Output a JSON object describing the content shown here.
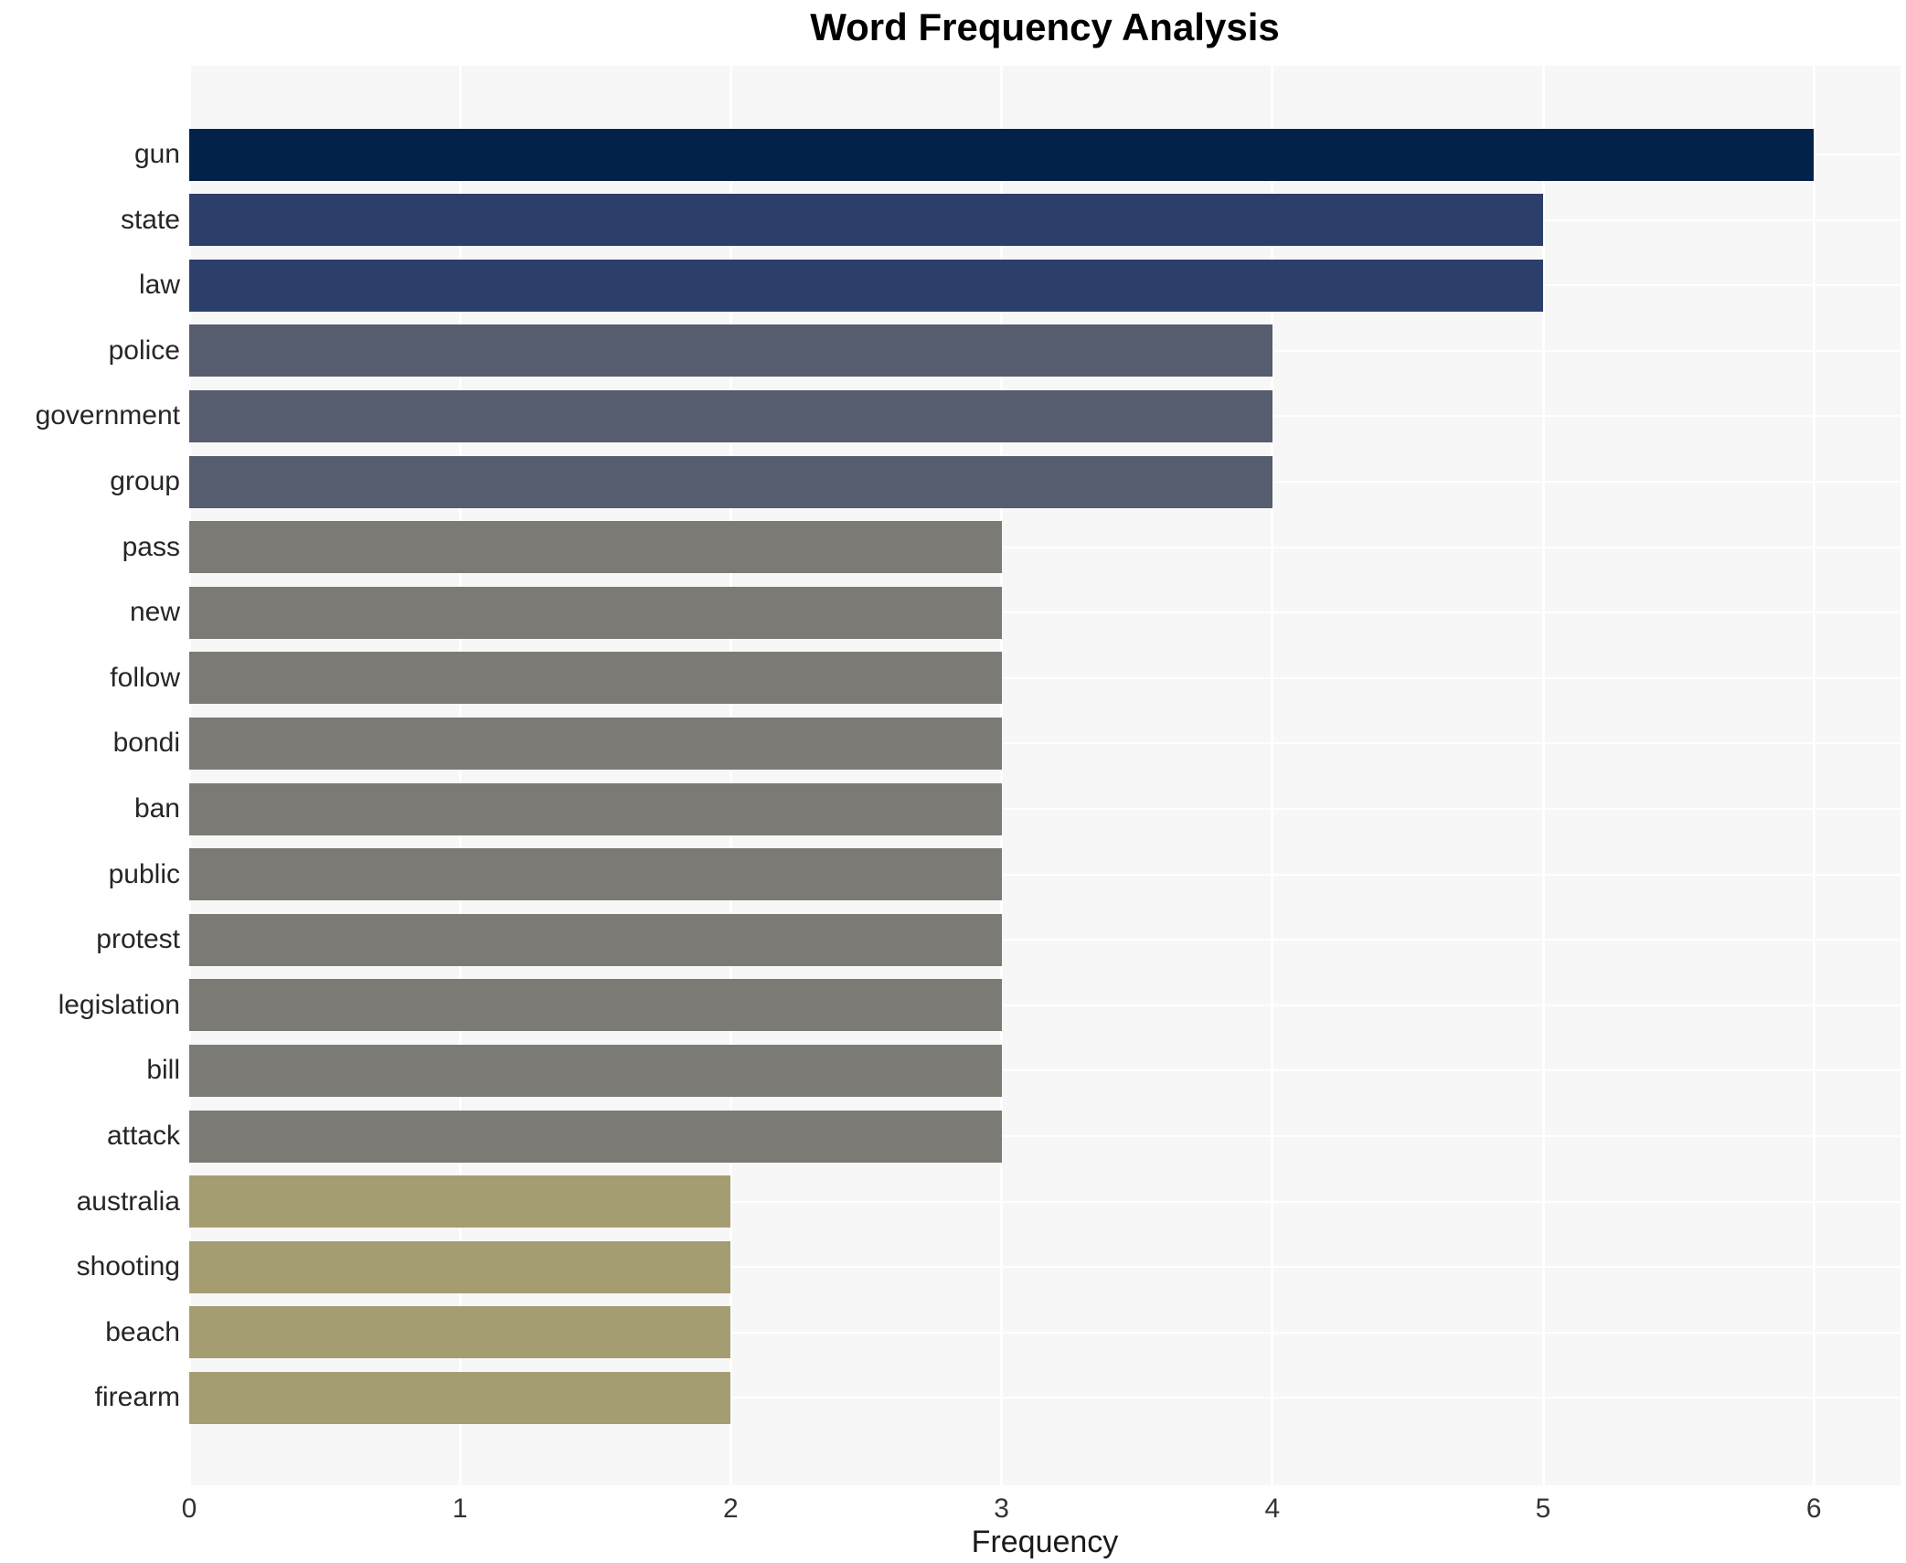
{
  "chart_data": {
    "type": "bar",
    "orientation": "horizontal",
    "title": "Word Frequency Analysis",
    "xlabel": "Frequency",
    "ylabel": "",
    "categories": [
      "gun",
      "state",
      "law",
      "police",
      "government",
      "group",
      "pass",
      "new",
      "follow",
      "bondi",
      "ban",
      "public",
      "protest",
      "legislation",
      "bill",
      "attack",
      "australia",
      "shooting",
      "beach",
      "firearm"
    ],
    "values": [
      6,
      5,
      5,
      4,
      4,
      4,
      3,
      3,
      3,
      3,
      3,
      3,
      3,
      3,
      3,
      3,
      2,
      2,
      2,
      2
    ],
    "bar_colors": [
      "#02224a",
      "#2c3e6a",
      "#2c3e6a",
      "#565d6e",
      "#565d6e",
      "#565d6e",
      "#7b7a75",
      "#7b7a75",
      "#7b7a75",
      "#7b7a75",
      "#7b7a75",
      "#7b7a75",
      "#7b7a75",
      "#7b7a75",
      "#7b7a75",
      "#7b7a75",
      "#a59d72",
      "#a59d72",
      "#a59d72",
      "#a59d72"
    ],
    "x_ticks": [
      "0",
      "1",
      "2",
      "3",
      "4",
      "5",
      "6"
    ],
    "xlim": [
      0,
      6.32
    ],
    "grid": true,
    "legend": false,
    "plot_background": "#f7f7f7",
    "grid_color": "#ffffff",
    "tick_label_color": "#333333",
    "category_label_color": "#262626",
    "title_color": "#000000"
  }
}
